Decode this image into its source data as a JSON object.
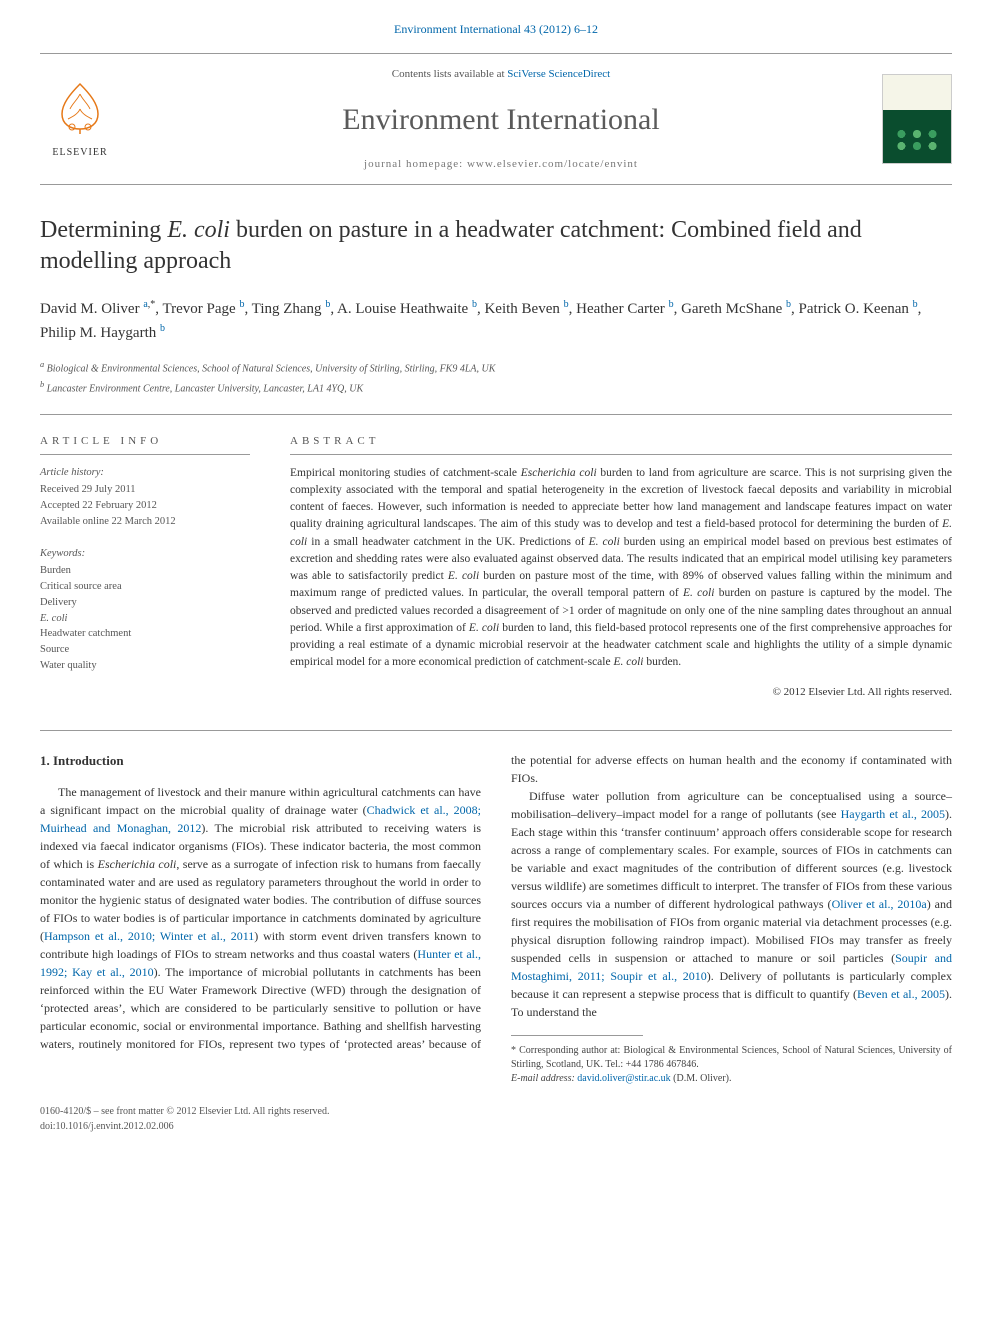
{
  "top_link": {
    "prefix": "",
    "journal": "Environment International 43 (2012) 6–12",
    "href": "#"
  },
  "header": {
    "contents_prefix": "Contents lists available at ",
    "contents_link": "SciVerse ScienceDirect",
    "journal_name": "Environment International",
    "homepage": "journal homepage: www.elsevier.com/locate/envint",
    "elsevier_label": "ELSEVIER"
  },
  "article": {
    "title_pre": "Determining ",
    "title_em": "E. coli",
    "title_post": " burden on pasture in a headwater catchment: Combined field and modelling approach",
    "authors_html": "David M. Oliver <sup><a href='#'>a</a>,*</sup>, Trevor Page <sup><a href='#'>b</a></sup>, Ting Zhang <sup><a href='#'>b</a></sup>, A. Louise Heathwaite <sup><a href='#'>b</a></sup>, Keith Beven <sup><a href='#'>b</a></sup>, Heather Carter <sup><a href='#'>b</a></sup>, Gareth McShane <sup><a href='#'>b</a></sup>, Patrick O. Keenan <sup><a href='#'>b</a></sup>, Philip M. Haygarth <sup><a href='#'>b</a></sup>",
    "affiliations": [
      "a  Biological & Environmental Sciences, School of Natural Sciences, University of Stirling, Stirling, FK9 4LA, UK",
      "b  Lancaster Environment Centre, Lancaster University, Lancaster, LA1 4YQ, UK"
    ]
  },
  "meta": {
    "article_info_heading": "ARTICLE INFO",
    "abstract_heading": "ABSTRACT",
    "history_label": "Article history:",
    "history": [
      "Received 29 July 2011",
      "Accepted 22 February 2012",
      "Available online 22 March 2012"
    ],
    "keywords_label": "Keywords:",
    "keywords": [
      "Burden",
      "Critical source area",
      "Delivery",
      "E. coli",
      "Headwater catchment",
      "Source",
      "Water quality"
    ]
  },
  "abstract": {
    "text_parts": [
      "Empirical monitoring studies of catchment-scale ",
      "Escherichia coli",
      " burden to land from agriculture are scarce. This is not surprising given the complexity associated with the temporal and spatial heterogeneity in the excretion of livestock faecal deposits and variability in microbial content of faeces. However, such information is needed to appreciate better how land management and landscape features impact on water quality draining agricultural landscapes. The aim of this study was to develop and test a field-based protocol for determining the burden of ",
      "E. coli",
      " in a small headwater catchment in the UK. Predictions of ",
      "E. coli",
      " burden using an empirical model based on previous best estimates of excretion and shedding rates were also evaluated against observed data. The results indicated that an empirical model utilising key parameters was able to satisfactorily predict ",
      "E. coli",
      " burden on pasture most of the time, with 89% of observed values falling within the minimum and maximum range of predicted values. In particular, the overall temporal pattern of ",
      "E. coli",
      " burden on pasture is captured by the model. The observed and predicted values recorded a disagreement of >1 order of magnitude on only one of the nine sampling dates throughout an annual period. While a first approximation of ",
      "E. coli",
      " burden to land, this field-based protocol represents one of the first comprehensive approaches for providing a real estimate of a dynamic microbial reservoir at the headwater catchment scale and highlights the utility of a simple dynamic empirical model for a more economical prediction of catchment-scale ",
      "E. coli",
      " burden."
    ],
    "copyright": "© 2012 Elsevier Ltd. All rights reserved."
  },
  "body": {
    "section_heading": "1. Introduction",
    "p1_parts": [
      "The management of livestock and their manure within agricultural catchments can have a significant impact on the microbial quality of drainage water (",
      "Chadwick et al., 2008; Muirhead and Monaghan, 2012",
      "). The microbial risk attributed to receiving waters is indexed via faecal indicator organisms (FIOs). These indicator bacteria, the most common of which is ",
      "Escherichia coli",
      ", serve as a surrogate of infection risk to humans from faecally contaminated water and are used as regulatory parameters throughout the world in order to monitor the hygienic status of designated water bodies. The contribution of diffuse sources of FIOs to water bodies is of particular importance in catchments dominated by agriculture (",
      "Hampson et al., 2010; Winter et al., 2011",
      ") with storm event driven transfers known to contribute high loadings of FIOs to stream networks and thus coastal waters (",
      "Hunter et al., 1992; Kay et al., 2010",
      "). The importance of microbial pollutants in catchments has been reinforced within the EU Water Framework Directive (WFD) through the designation of ‘protected areas’, which are considered to be particularly sensitive to pollution or have particular economic, social or environmental importance. Bathing and shellfish harvesting waters, routinely monitored for FIOs, represent two types of ‘protected areas’ because of the potential for adverse effects on human health and the economy if contaminated with FIOs."
    ],
    "p2_parts": [
      "Diffuse water pollution from agriculture can be conceptualised using a source–mobilisation–delivery–impact model for a range of pollutants (see ",
      "Haygarth et al., 2005",
      "). Each stage within this ‘transfer continuum’ approach offers considerable scope for research across a range of complementary scales. For example, sources of FIOs in catchments can be variable and exact magnitudes of the contribution of different sources (e.g. livestock versus wildlife) are sometimes difficult to interpret. The transfer of FIOs from these various sources occurs via a number of different hydrological pathways (",
      "Oliver et al., 2010a",
      ") and first requires the mobilisation of FIOs from organic material via detachment processes (e.g. physical disruption following raindrop impact). Mobilised FIOs may transfer as freely suspended cells in suspension or attached to manure or soil particles (",
      "Soupir and Mostaghimi, 2011; Soupir et al., 2010",
      "). Delivery of pollutants is particularly complex because it can represent a stepwise process that is difficult to quantify (",
      "Beven et al., 2005",
      "). To understand the"
    ]
  },
  "footnotes": {
    "corr": "* Corresponding author at: Biological & Environmental Sciences, School of Natural Sciences, University of Stirling, Scotland, UK. Tel.: +44 1786 467846.",
    "email_label": "E-mail address: ",
    "email": "david.oliver@stir.ac.uk",
    "email_post": " (D.M. Oliver)."
  },
  "footer": {
    "front_matter": "0160-4120/$ – see front matter © 2012 Elsevier Ltd. All rights reserved.",
    "doi": "doi:10.1016/j.envint.2012.02.006"
  },
  "colors": {
    "link": "#0066aa",
    "elsevier_orange": "#e67817",
    "text": "#333333",
    "meta_text": "#555555",
    "rule": "#999999"
  }
}
